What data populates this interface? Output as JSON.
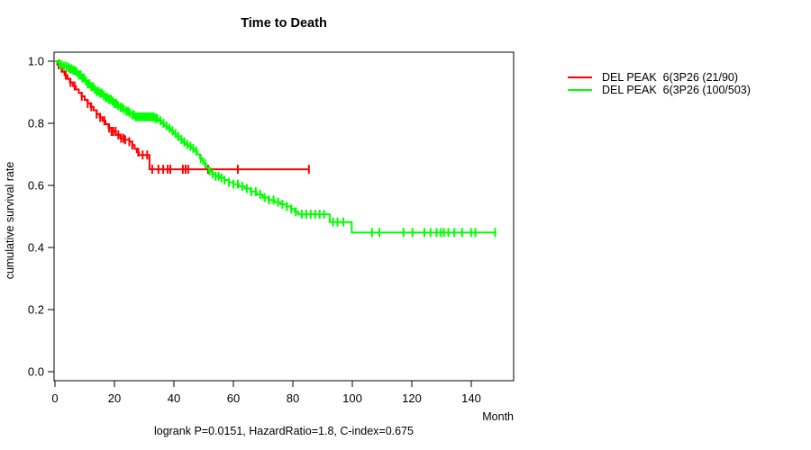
{
  "title": "Time to Death",
  "xlabel": "Month",
  "ylabel": "cumulative survival rate",
  "caption": "logrank P=0.0151, HazardRatio=1.8, C-index=0.675",
  "legend": [
    {
      "label": "DEL PEAK  6(3P26 (21/90)",
      "color": "#ff0000"
    },
    {
      "label": "DEL PEAK  6(3P26 (100/503)",
      "color": "#00ff00"
    }
  ],
  "chart_data": {
    "type": "line",
    "subtype": "kaplan-meier-step-survival",
    "title": "Time to Death",
    "xlabel": "Month",
    "ylabel": "cumulative survival rate",
    "xlim": [
      0,
      154
    ],
    "ylim": [
      0.0,
      1.04
    ],
    "x_ticks": [
      0,
      20,
      40,
      60,
      80,
      100,
      120,
      140
    ],
    "y_ticks": [
      0.0,
      0.2,
      0.4,
      0.6,
      0.8,
      1.0
    ],
    "grid": false,
    "legend_position": "right-outside",
    "axis_color": "#000000",
    "series": [
      {
        "name": "DEL PEAK  6(3P26 (21/90)",
        "color": "#ff0000",
        "steps": [
          [
            0,
            1.0
          ],
          [
            0.8,
            0.989
          ],
          [
            1.6,
            0.978
          ],
          [
            2.4,
            0.966
          ],
          [
            3.2,
            0.955
          ],
          [
            4.2,
            0.943
          ],
          [
            5,
            0.932
          ],
          [
            6,
            0.92
          ],
          [
            7,
            0.909
          ],
          [
            8,
            0.898
          ],
          [
            9,
            0.887
          ],
          [
            10,
            0.875
          ],
          [
            11,
            0.864
          ],
          [
            12,
            0.853
          ],
          [
            13,
            0.842
          ],
          [
            14,
            0.83
          ],
          [
            15,
            0.819
          ],
          [
            16,
            0.808
          ],
          [
            17,
            0.797
          ],
          [
            18,
            0.785
          ],
          [
            19,
            0.774
          ],
          [
            20.5,
            0.763
          ],
          [
            22,
            0.752
          ],
          [
            23.5,
            0.747
          ],
          [
            25,
            0.741
          ],
          [
            26,
            0.73
          ],
          [
            26.8,
            0.718
          ],
          [
            27.5,
            0.707
          ],
          [
            28.2,
            0.698
          ],
          [
            31.8,
            0.652
          ],
          [
            85.5,
            0.652
          ]
        ],
        "censor_months": [
          1.2,
          2.2,
          3.6,
          5.2,
          6.6,
          9,
          11,
          12.2,
          14,
          15.2,
          16.6,
          18.2,
          19,
          19.6,
          20.4,
          21.3,
          22.2,
          23,
          23.6,
          25,
          26,
          28,
          29.5,
          31,
          32.7,
          34.8,
          36.4,
          37.9,
          38.8,
          43,
          43.9,
          44.8,
          51.5,
          61.5,
          85.4
        ]
      },
      {
        "name": "DEL PEAK  6(3P26 (100/503)",
        "color": "#00ff00",
        "steps": [
          [
            0,
            1.0
          ],
          [
            0.7,
            0.996
          ],
          [
            1.4,
            0.992
          ],
          [
            2.2,
            0.988
          ],
          [
            3,
            0.984
          ],
          [
            4,
            0.98
          ],
          [
            5,
            0.975
          ],
          [
            6,
            0.97
          ],
          [
            7,
            0.964
          ],
          [
            8,
            0.956
          ],
          [
            9,
            0.946
          ],
          [
            10,
            0.936
          ],
          [
            11,
            0.927
          ],
          [
            12,
            0.918
          ],
          [
            13,
            0.91
          ],
          [
            14,
            0.903
          ],
          [
            15,
            0.897
          ],
          [
            16,
            0.89
          ],
          [
            17,
            0.883
          ],
          [
            18,
            0.877
          ],
          [
            19,
            0.871
          ],
          [
            20,
            0.864
          ],
          [
            21,
            0.857
          ],
          [
            22,
            0.851
          ],
          [
            23,
            0.845
          ],
          [
            24,
            0.839
          ],
          [
            25,
            0.833
          ],
          [
            26,
            0.827
          ],
          [
            27,
            0.821
          ],
          [
            33.8,
            0.816
          ],
          [
            34.8,
            0.808
          ],
          [
            35.8,
            0.8
          ],
          [
            36.8,
            0.792
          ],
          [
            37.8,
            0.784
          ],
          [
            38.8,
            0.776
          ],
          [
            39.8,
            0.767
          ],
          [
            40.8,
            0.757
          ],
          [
            41.8,
            0.748
          ],
          [
            42.8,
            0.74
          ],
          [
            43.8,
            0.732
          ],
          [
            44.8,
            0.726
          ],
          [
            45.8,
            0.719
          ],
          [
            46.8,
            0.711
          ],
          [
            47.8,
            0.7
          ],
          [
            48.8,
            0.687
          ],
          [
            49.8,
            0.67
          ],
          [
            50.8,
            0.657
          ],
          [
            51.8,
            0.646
          ],
          [
            52.8,
            0.637
          ],
          [
            54,
            0.63
          ],
          [
            55.5,
            0.624
          ],
          [
            57,
            0.617
          ],
          [
            58.5,
            0.61
          ],
          [
            60,
            0.604
          ],
          [
            61.8,
            0.597
          ],
          [
            63.8,
            0.59
          ],
          [
            65.8,
            0.58
          ],
          [
            67.8,
            0.571
          ],
          [
            69.8,
            0.561
          ],
          [
            71.8,
            0.553
          ],
          [
            73.8,
            0.546
          ],
          [
            75.8,
            0.539
          ],
          [
            77.8,
            0.532
          ],
          [
            79.4,
            0.524
          ],
          [
            80.6,
            0.515
          ],
          [
            81.8,
            0.507
          ],
          [
            92.4,
            0.482
          ],
          [
            99.8,
            0.448
          ],
          [
            148.5,
            0.448
          ]
        ],
        "censor_months": [
          1.5,
          2.2,
          3,
          3.8,
          4.5,
          5,
          5.6,
          6.2,
          6.8,
          7.4,
          8,
          8.6,
          9.2,
          9.8,
          10.4,
          11,
          11.6,
          12.2,
          12.8,
          13.4,
          14,
          14.6,
          15.2,
          15.8,
          16.4,
          17,
          17.6,
          18.2,
          18.8,
          19.4,
          20,
          20.6,
          21.2,
          22,
          22.6,
          23.2,
          24,
          24.6,
          25.2,
          26,
          26.6,
          27.2,
          27.8,
          28.4,
          29,
          29.6,
          30.2,
          30.8,
          31.4,
          32,
          32.6,
          33.2,
          33.8,
          34.4,
          35.5,
          36.5,
          37.5,
          38.5,
          39.5,
          40.5,
          41.5,
          42.5,
          43.5,
          44.5,
          45.5,
          46.5,
          47.5,
          49,
          50.5,
          52,
          53,
          54,
          55,
          56,
          57,
          58.5,
          60,
          61.5,
          63,
          64.5,
          66,
          67.5,
          69,
          70.5,
          72,
          73.5,
          75,
          76.5,
          78,
          79.5,
          81,
          83,
          84.5,
          86,
          87.5,
          89,
          90.5,
          93.5,
          95,
          97,
          106.6,
          109.1,
          117.2,
          120.2,
          124.2,
          126.3,
          128.3,
          129.8,
          130.8,
          132.3,
          134.3,
          136.9,
          139.9,
          141.4,
          148
        ]
      }
    ]
  }
}
